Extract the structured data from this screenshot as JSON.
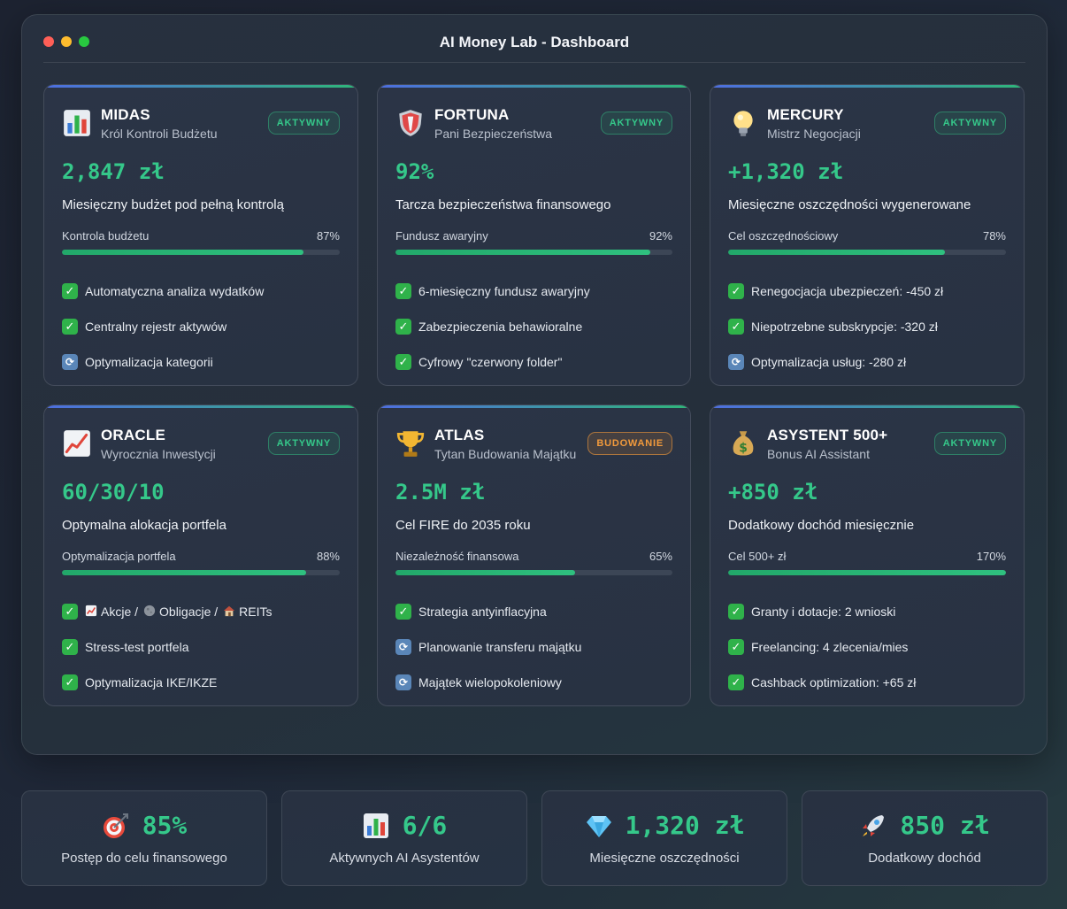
{
  "window": {
    "title": "AI Money Lab - Dashboard"
  },
  "cards": [
    {
      "name": "MIDAS",
      "subtitle": "Król Kontroli Budżetu",
      "badge": "AKTYWNY",
      "icon": "bar-chart-icon",
      "metric": "2,847 zł",
      "description": "Miesięczny budżet pod pełną kontrolą",
      "progress": {
        "label": "Kontrola budżetu",
        "value_text": "87%",
        "value": 87
      },
      "features": [
        {
          "status": "done",
          "text": "Automatyczna analiza wydatków"
        },
        {
          "status": "done",
          "text": "Centralny rejestr aktywów"
        },
        {
          "status": "in-progress",
          "text": "Optymalizacja kategorii"
        }
      ]
    },
    {
      "name": "FORTUNA",
      "subtitle": "Pani Bezpieczeństwa",
      "badge": "AKTYWNY",
      "icon": "shield-icon",
      "metric": "92%",
      "description": "Tarcza bezpieczeństwa finansowego",
      "progress": {
        "label": "Fundusz awaryjny",
        "value_text": "92%",
        "value": 92
      },
      "features": [
        {
          "status": "done",
          "text": "6-miesięczny fundusz awaryjny"
        },
        {
          "status": "done",
          "text": "Zabezpieczenia behawioralne"
        },
        {
          "status": "done",
          "text": "Cyfrowy \"czerwony folder\""
        }
      ]
    },
    {
      "name": "MERCURY",
      "subtitle": "Mistrz Negocjacji",
      "badge": "AKTYWNY",
      "icon": "light-bulb-icon",
      "metric": "+1,320 zł",
      "description": "Miesięczne oszczędności wygenerowane",
      "progress": {
        "label": "Cel oszczędnościowy",
        "value_text": "78%",
        "value": 78
      },
      "features": [
        {
          "status": "done",
          "text": "Renegocjacja ubezpieczeń: -450 zł"
        },
        {
          "status": "done",
          "text": "Niepotrzebne subskrypcje: -320 zł"
        },
        {
          "status": "in-progress",
          "text": "Optymalizacja usług: -280 zł"
        }
      ]
    },
    {
      "name": "ORACLE",
      "subtitle": "Wyrocznia Inwestycji",
      "badge": "AKTYWNY",
      "icon": "trending-up-icon",
      "metric": "60/30/10",
      "description": "Optymalna alokacja portfela",
      "progress": {
        "label": "Optymalizacja portfela",
        "value_text": "88%",
        "value": 88
      },
      "features": [
        {
          "status": "done",
          "text": "",
          "parts": [
            {
              "icon": "trending-up-icon",
              "text": "Akcje /"
            },
            {
              "icon": "moon-icon",
              "text": "Obligacje /"
            },
            {
              "icon": "house-icon",
              "text": "REITs"
            }
          ]
        },
        {
          "status": "done",
          "text": "Stress-test portfela"
        },
        {
          "status": "done",
          "text": "Optymalizacja IKE/IKZE"
        }
      ]
    },
    {
      "name": "ATLAS",
      "subtitle": "Tytan Budowania Majątku",
      "badge": "BUDOWANIE",
      "icon": "trophy-icon",
      "metric": "2.5M zł",
      "description": "Cel FIRE do 2035 roku",
      "progress": {
        "label": "Niezależność finansowa",
        "value_text": "65%",
        "value": 65
      },
      "features": [
        {
          "status": "done",
          "text": "Strategia antyinflacyjna"
        },
        {
          "status": "in-progress",
          "text": "Planowanie transferu majątku"
        },
        {
          "status": "in-progress",
          "text": "Majątek wielopokoleniowy"
        }
      ]
    },
    {
      "name": "ASYSTENT 500+",
      "subtitle": "Bonus AI Assistant",
      "badge": "AKTYWNY",
      "icon": "money-bag-icon",
      "metric": "+850 zł",
      "description": "Dodatkowy dochód miesięcznie",
      "progress": {
        "label": "Cel 500+ zł",
        "value_text": "170%",
        "value": 170
      },
      "features": [
        {
          "status": "done",
          "text": "Granty i dotacje: 2 wnioski"
        },
        {
          "status": "done",
          "text": "Freelancing: 4 zlecenia/mies"
        },
        {
          "status": "done",
          "text": "Cashback optimization: +65 zł"
        }
      ]
    }
  ],
  "stats": [
    {
      "icon": "target-icon",
      "value": "85%",
      "label": "Postęp do celu finansowego"
    },
    {
      "icon": "bar-chart-icon",
      "value": "6/6",
      "label": "Aktywnych AI Asystentów"
    },
    {
      "icon": "diamond-icon",
      "value": "1,320 zł",
      "label": "Miesięczne oszczędności"
    },
    {
      "icon": "rocket-icon",
      "value": "850 zł",
      "label": "Dodatkowy dochód"
    }
  ],
  "colors": {
    "accent_green": "#35c88a",
    "warning_orange": "#f29a3c",
    "check_green": "#2fb24a",
    "sync_blue": "#5a86b8"
  }
}
